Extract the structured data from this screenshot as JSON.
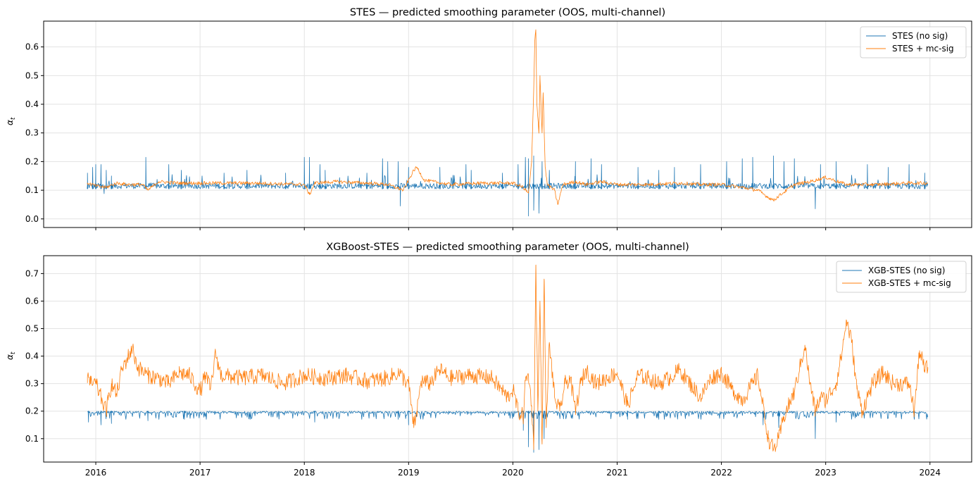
{
  "chart_data": [
    {
      "type": "line",
      "title": "STES — predicted smoothing parameter (OOS, multi-channel)",
      "xlabel": "",
      "ylabel": "α_t",
      "ylabel_main": "α",
      "ylabel_sub": "t",
      "xlim": [
        2015.5,
        2024.4
      ],
      "ylim": [
        -0.03,
        0.69
      ],
      "xticks": [
        2016,
        2017,
        2018,
        2019,
        2020,
        2021,
        2022,
        2023,
        2024
      ],
      "xtick_labels_shown": false,
      "yticks": [
        0.0,
        0.1,
        0.2,
        0.3,
        0.4,
        0.5,
        0.6
      ],
      "ytick_labels": [
        "0.0",
        "0.1",
        "0.2",
        "0.3",
        "0.4",
        "0.5",
        "0.6"
      ],
      "grid": true,
      "legend": "top-right",
      "series": [
        {
          "name": "STES (no sig)",
          "color": "#1f77b4",
          "baseline": 0.105,
          "spikes": [
            [
              2015.92,
              0.16
            ],
            [
              2015.97,
              0.18
            ],
            [
              2016.0,
              0.19
            ],
            [
              2016.05,
              0.19
            ],
            [
              2016.1,
              0.17
            ],
            [
              2016.15,
              0.15
            ],
            [
              2016.48,
              0.215
            ],
            [
              2016.7,
              0.19
            ],
            [
              2016.82,
              0.17
            ],
            [
              2017.23,
              0.16
            ],
            [
              2017.45,
              0.17
            ],
            [
              2017.82,
              0.16
            ],
            [
              2018.0,
              0.215
            ],
            [
              2018.05,
              0.215
            ],
            [
              2018.15,
              0.19
            ],
            [
              2018.2,
              0.17
            ],
            [
              2018.6,
              0.16
            ],
            [
              2018.75,
              0.21
            ],
            [
              2018.8,
              0.2
            ],
            [
              2018.9,
              0.2
            ],
            [
              2019.0,
              0.18
            ],
            [
              2019.3,
              0.18
            ],
            [
              2019.55,
              0.19
            ],
            [
              2019.6,
              0.17
            ],
            [
              2019.9,
              0.16
            ],
            [
              2020.05,
              0.19
            ],
            [
              2020.12,
              0.215
            ],
            [
              2020.15,
              0.21
            ],
            [
              2020.2,
              0.22
            ],
            [
              2020.28,
              0.2
            ],
            [
              2020.35,
              0.17
            ],
            [
              2020.6,
              0.2
            ],
            [
              2020.75,
              0.21
            ],
            [
              2020.85,
              0.19
            ],
            [
              2021.2,
              0.18
            ],
            [
              2021.4,
              0.17
            ],
            [
              2021.55,
              0.18
            ],
            [
              2021.8,
              0.19
            ],
            [
              2022.05,
              0.2
            ],
            [
              2022.2,
              0.21
            ],
            [
              2022.3,
              0.215
            ],
            [
              2022.5,
              0.22
            ],
            [
              2022.6,
              0.2
            ],
            [
              2022.7,
              0.21
            ],
            [
              2022.95,
              0.19
            ],
            [
              2023.1,
              0.2
            ],
            [
              2023.4,
              0.19
            ],
            [
              2023.6,
              0.18
            ],
            [
              2023.8,
              0.19
            ],
            [
              2023.95,
              0.16
            ]
          ],
          "dips": [
            [
              2016.08,
              0.088
            ],
            [
              2018.92,
              0.045
            ],
            [
              2020.15,
              0.01
            ],
            [
              2020.2,
              0.03
            ],
            [
              2020.25,
              0.02
            ],
            [
              2022.9,
              0.035
            ]
          ]
        },
        {
          "name": "STES + mc-sig",
          "color": "#ff7f0e",
          "points": [
            [
              2015.92,
              0.125
            ],
            [
              2016.0,
              0.115
            ],
            [
              2016.1,
              0.11
            ],
            [
              2016.2,
              0.125
            ],
            [
              2016.3,
              0.12
            ],
            [
              2016.45,
              0.12
            ],
            [
              2016.5,
              0.1
            ],
            [
              2016.55,
              0.115
            ],
            [
              2016.6,
              0.13
            ],
            [
              2016.8,
              0.125
            ],
            [
              2017.0,
              0.125
            ],
            [
              2017.5,
              0.125
            ],
            [
              2018.0,
              0.12
            ],
            [
              2018.05,
              0.085
            ],
            [
              2018.1,
              0.125
            ],
            [
              2018.3,
              0.13
            ],
            [
              2018.6,
              0.125
            ],
            [
              2018.8,
              0.12
            ],
            [
              2018.95,
              0.1
            ],
            [
              2019.05,
              0.17
            ],
            [
              2019.08,
              0.18
            ],
            [
              2019.15,
              0.135
            ],
            [
              2019.4,
              0.12
            ],
            [
              2019.7,
              0.125
            ],
            [
              2020.0,
              0.125
            ],
            [
              2020.1,
              0.11
            ],
            [
              2020.15,
              0.09
            ],
            [
              2020.18,
              0.2
            ],
            [
              2020.2,
              0.45
            ],
            [
              2020.21,
              0.62
            ],
            [
              2020.22,
              0.66
            ],
            [
              2020.23,
              0.4
            ],
            [
              2020.25,
              0.3
            ],
            [
              2020.26,
              0.5
            ],
            [
              2020.28,
              0.3
            ],
            [
              2020.29,
              0.44
            ],
            [
              2020.31,
              0.18
            ],
            [
              2020.33,
              0.12
            ],
            [
              2020.4,
              0.1
            ],
            [
              2020.43,
              0.05
            ],
            [
              2020.48,
              0.12
            ],
            [
              2020.6,
              0.13
            ],
            [
              2020.7,
              0.12
            ],
            [
              2020.85,
              0.13
            ],
            [
              2021.0,
              0.12
            ],
            [
              2021.3,
              0.12
            ],
            [
              2021.6,
              0.125
            ],
            [
              2021.8,
              0.12
            ],
            [
              2022.0,
              0.12
            ],
            [
              2022.2,
              0.11
            ],
            [
              2022.35,
              0.1
            ],
            [
              2022.45,
              0.075
            ],
            [
              2022.5,
              0.065
            ],
            [
              2022.55,
              0.08
            ],
            [
              2022.7,
              0.12
            ],
            [
              2022.85,
              0.13
            ],
            [
              2023.0,
              0.145
            ],
            [
              2023.2,
              0.12
            ],
            [
              2023.5,
              0.12
            ],
            [
              2023.8,
              0.125
            ],
            [
              2023.97,
              0.125
            ]
          ]
        }
      ]
    },
    {
      "type": "line",
      "title": "XGBoost-STES — predicted smoothing parameter (OOS, multi-channel)",
      "xlabel": "",
      "ylabel": "α_t",
      "ylabel_main": "α",
      "ylabel_sub": "t",
      "xlim": [
        2015.5,
        2024.4
      ],
      "ylim": [
        0.015,
        0.765
      ],
      "xticks": [
        2016,
        2017,
        2018,
        2019,
        2020,
        2021,
        2022,
        2023,
        2024
      ],
      "xtick_labels": [
        "2016",
        "2017",
        "2018",
        "2019",
        "2020",
        "2021",
        "2022",
        "2023",
        "2024"
      ],
      "yticks": [
        0.1,
        0.2,
        0.3,
        0.4,
        0.5,
        0.6,
        0.7
      ],
      "ytick_labels": [
        "0.1",
        "0.2",
        "0.3",
        "0.4",
        "0.5",
        "0.6",
        "0.7"
      ],
      "grid": true,
      "legend": "top-right",
      "series": [
        {
          "name": "XGB-STES (no sig)",
          "color": "#1f77b4",
          "baseline": 0.2,
          "dips": [
            [
              2015.93,
              0.16
            ],
            [
              2016.05,
              0.15
            ],
            [
              2016.15,
              0.155
            ],
            [
              2016.5,
              0.165
            ],
            [
              2016.85,
              0.17
            ],
            [
              2018.1,
              0.16
            ],
            [
              2018.9,
              0.17
            ],
            [
              2019.0,
              0.15
            ],
            [
              2020.1,
              0.13
            ],
            [
              2020.15,
              0.07
            ],
            [
              2020.2,
              0.05
            ],
            [
              2020.25,
              0.06
            ],
            [
              2020.3,
              0.1
            ],
            [
              2021.1,
              0.17
            ],
            [
              2021.4,
              0.17
            ],
            [
              2022.4,
              0.15
            ],
            [
              2022.55,
              0.14
            ],
            [
              2022.9,
              0.1
            ],
            [
              2023.1,
              0.16
            ],
            [
              2023.85,
              0.17
            ]
          ]
        },
        {
          "name": "XGB-STES + mc-sig",
          "color": "#ff7f0e",
          "points": [
            [
              2015.92,
              0.325
            ],
            [
              2015.95,
              0.3
            ],
            [
              2016.0,
              0.3
            ],
            [
              2016.05,
              0.25
            ],
            [
              2016.1,
              0.2
            ],
            [
              2016.12,
              0.24
            ],
            [
              2016.15,
              0.3
            ],
            [
              2016.2,
              0.26
            ],
            [
              2016.25,
              0.35
            ],
            [
              2016.3,
              0.39
            ],
            [
              2016.35,
              0.43
            ],
            [
              2016.4,
              0.36
            ],
            [
              2016.5,
              0.33
            ],
            [
              2016.6,
              0.32
            ],
            [
              2016.7,
              0.3
            ],
            [
              2016.8,
              0.34
            ],
            [
              2016.9,
              0.33
            ],
            [
              2017.0,
              0.27
            ],
            [
              2017.05,
              0.33
            ],
            [
              2017.1,
              0.28
            ],
            [
              2017.15,
              0.41
            ],
            [
              2017.2,
              0.33
            ],
            [
              2017.4,
              0.32
            ],
            [
              2017.6,
              0.33
            ],
            [
              2017.8,
              0.3
            ],
            [
              2018.0,
              0.33
            ],
            [
              2018.2,
              0.32
            ],
            [
              2018.4,
              0.33
            ],
            [
              2018.6,
              0.31
            ],
            [
              2018.8,
              0.32
            ],
            [
              2018.9,
              0.34
            ],
            [
              2019.0,
              0.3
            ],
            [
              2019.05,
              0.14
            ],
            [
              2019.08,
              0.2
            ],
            [
              2019.12,
              0.31
            ],
            [
              2019.2,
              0.3
            ],
            [
              2019.3,
              0.35
            ],
            [
              2019.4,
              0.32
            ],
            [
              2019.6,
              0.33
            ],
            [
              2019.8,
              0.32
            ],
            [
              2019.95,
              0.25
            ],
            [
              2020.0,
              0.28
            ],
            [
              2020.05,
              0.2
            ],
            [
              2020.1,
              0.18
            ],
            [
              2020.12,
              0.31
            ],
            [
              2020.15,
              0.33
            ],
            [
              2020.18,
              0.22
            ],
            [
              2020.2,
              0.06
            ],
            [
              2020.22,
              0.73
            ],
            [
              2020.24,
              0.2
            ],
            [
              2020.26,
              0.6
            ],
            [
              2020.28,
              0.08
            ],
            [
              2020.3,
              0.68
            ],
            [
              2020.32,
              0.14
            ],
            [
              2020.35,
              0.45
            ],
            [
              2020.4,
              0.25
            ],
            [
              2020.45,
              0.2
            ],
            [
              2020.5,
              0.3
            ],
            [
              2020.55,
              0.32
            ],
            [
              2020.6,
              0.2
            ],
            [
              2020.65,
              0.3
            ],
            [
              2020.7,
              0.35
            ],
            [
              2020.8,
              0.3
            ],
            [
              2020.9,
              0.32
            ],
            [
              2021.0,
              0.34
            ],
            [
              2021.1,
              0.22
            ],
            [
              2021.2,
              0.33
            ],
            [
              2021.3,
              0.32
            ],
            [
              2021.4,
              0.3
            ],
            [
              2021.5,
              0.32
            ],
            [
              2021.6,
              0.35
            ],
            [
              2021.7,
              0.3
            ],
            [
              2021.8,
              0.25
            ],
            [
              2021.9,
              0.32
            ],
            [
              2022.0,
              0.34
            ],
            [
              2022.1,
              0.28
            ],
            [
              2022.2,
              0.24
            ],
            [
              2022.3,
              0.3
            ],
            [
              2022.35,
              0.33
            ],
            [
              2022.45,
              0.1
            ],
            [
              2022.5,
              0.06
            ],
            [
              2022.55,
              0.1
            ],
            [
              2022.6,
              0.18
            ],
            [
              2022.7,
              0.27
            ],
            [
              2022.8,
              0.44
            ],
            [
              2022.85,
              0.3
            ],
            [
              2022.9,
              0.2
            ],
            [
              2022.95,
              0.25
            ],
            [
              2023.0,
              0.24
            ],
            [
              2023.1,
              0.3
            ],
            [
              2023.15,
              0.4
            ],
            [
              2023.2,
              0.53
            ],
            [
              2023.25,
              0.45
            ],
            [
              2023.3,
              0.28
            ],
            [
              2023.35,
              0.2
            ],
            [
              2023.45,
              0.3
            ],
            [
              2023.55,
              0.34
            ],
            [
              2023.65,
              0.3
            ],
            [
              2023.8,
              0.3
            ],
            [
              2023.85,
              0.2
            ],
            [
              2023.9,
              0.42
            ],
            [
              2023.95,
              0.35
            ],
            [
              2023.98,
              0.36
            ]
          ]
        }
      ]
    }
  ]
}
